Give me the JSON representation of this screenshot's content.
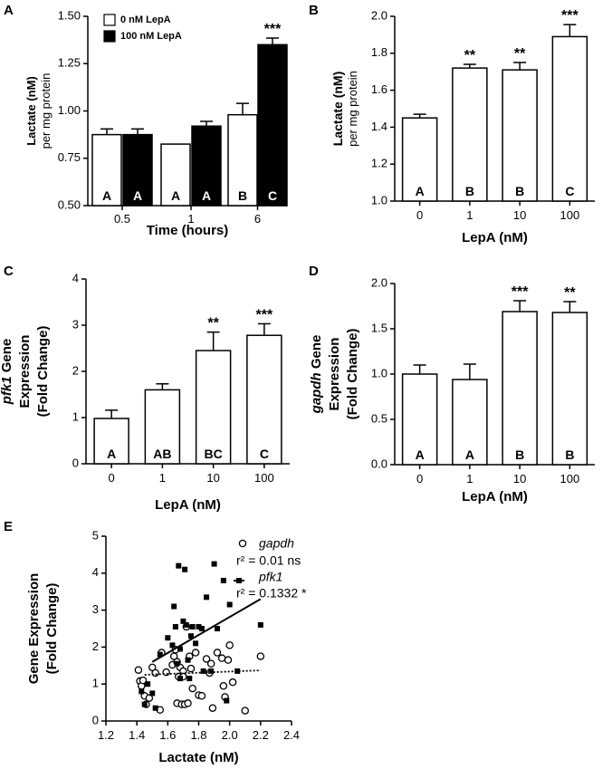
{
  "chart_data": [
    {
      "panel": "A",
      "type": "bar",
      "xlabel": "Time (hours)",
      "ylabel_line1": "Lactate (nM)",
      "ylabel_line2": "per mg protein",
      "ylim": [
        0.5,
        1.5
      ],
      "yticks": [
        "0.50",
        "0.75",
        "1.00",
        "1.25",
        "1.50"
      ],
      "categories": [
        "0.5",
        "1",
        "6"
      ],
      "series": [
        {
          "name": "0 nM LepA",
          "fill": "#ffffff",
          "values": [
            0.875,
            0.825,
            0.98
          ],
          "errors": [
            0.03,
            0.0,
            0.06
          ],
          "letters": [
            "A",
            "A",
            "B"
          ],
          "sig": [
            "",
            "",
            ""
          ]
        },
        {
          "name": "100 nM LepA",
          "fill": "#000000",
          "values": [
            0.875,
            0.92,
            1.35
          ],
          "errors": [
            0.03,
            0.025,
            0.035
          ],
          "letters": [
            "A",
            "A",
            "C"
          ],
          "sig": [
            "",
            "",
            "***"
          ]
        }
      ]
    },
    {
      "panel": "B",
      "type": "bar",
      "xlabel": "LepA (nM)",
      "ylabel_line1": "Lactate (nM)",
      "ylabel_line2": "per mg protein",
      "ylim": [
        1.0,
        2.0
      ],
      "yticks": [
        "1.0",
        "1.2",
        "1.4",
        "1.6",
        "1.8",
        "2.0"
      ],
      "categories": [
        "0",
        "1",
        "10",
        "100"
      ],
      "values": [
        1.45,
        1.72,
        1.71,
        1.89
      ],
      "errors": [
        0.02,
        0.02,
        0.04,
        0.065
      ],
      "letters": [
        "A",
        "B",
        "B",
        "C"
      ],
      "sig": [
        "",
        "**",
        "**",
        "***"
      ]
    },
    {
      "panel": "C",
      "type": "bar",
      "xlabel": "LepA (nM)",
      "ylabel_italic": "pfk1",
      "ylabel_rest": " Gene",
      "ylabel_line2": "Expression",
      "ylabel_line3": "(Fold Change)",
      "ylim": [
        0,
        4
      ],
      "yticks": [
        "0",
        "1",
        "2",
        "3",
        "4"
      ],
      "categories": [
        "0",
        "1",
        "10",
        "100"
      ],
      "values": [
        0.98,
        1.6,
        2.45,
        2.78
      ],
      "errors": [
        0.18,
        0.13,
        0.4,
        0.25
      ],
      "letters": [
        "A",
        "AB",
        "BC",
        "C"
      ],
      "sig": [
        "",
        "",
        "**",
        "***"
      ]
    },
    {
      "panel": "D",
      "type": "bar",
      "xlabel": "LepA (nM)",
      "ylabel_italic": "gapdh",
      "ylabel_rest": " Gene",
      "ylabel_line2": "Expression",
      "ylabel_line3": "(Fold Change)",
      "ylim": [
        0,
        2.0
      ],
      "yticks": [
        "0.0",
        "0.5",
        "1.0",
        "1.5",
        "2.0"
      ],
      "categories": [
        "0",
        "1",
        "10",
        "100"
      ],
      "values": [
        1.0,
        0.94,
        1.69,
        1.68
      ],
      "errors": [
        0.1,
        0.17,
        0.12,
        0.12
      ],
      "letters": [
        "A",
        "A",
        "B",
        "B"
      ],
      "sig": [
        "",
        "",
        "***",
        "**"
      ]
    },
    {
      "panel": "E",
      "type": "scatter",
      "xlabel": "Lactate (nM)",
      "ylabel_line1": "Gene Expression",
      "ylabel_line2": "(Fold Change)",
      "xlim": [
        1.2,
        2.4
      ],
      "ylim": [
        0,
        5
      ],
      "xticks": [
        "1.2",
        "1.4",
        "1.6",
        "1.8",
        "2.0",
        "2.2",
        "2.4"
      ],
      "yticks": [
        "0",
        "1",
        "2",
        "3",
        "4",
        "5"
      ],
      "series": [
        {
          "name": "gapdh",
          "stat": "r² = 0.01 ns",
          "marker": "open-circle",
          "fit": {
            "x": [
              1.45,
              2.2
            ],
            "y": [
              1.25,
              1.37
            ],
            "style": "dotted"
          },
          "points": [
            [
              1.41,
              1.38
            ],
            [
              1.42,
              1.08
            ],
            [
              1.43,
              0.95
            ],
            [
              1.44,
              1.1
            ],
            [
              1.45,
              0.68
            ],
            [
              1.46,
              0.45
            ],
            [
              1.48,
              0.62
            ],
            [
              1.5,
              1.45
            ],
            [
              1.52,
              1.3
            ],
            [
              1.55,
              0.3
            ],
            [
              1.56,
              1.85
            ],
            [
              1.59,
              1.32
            ],
            [
              1.63,
              1.52
            ],
            [
              1.64,
              1.75
            ],
            [
              1.65,
              1.93
            ],
            [
              1.66,
              1.6
            ],
            [
              1.66,
              0.48
            ],
            [
              1.67,
              1.2
            ],
            [
              1.68,
              1.45
            ],
            [
              1.69,
              0.45
            ],
            [
              1.7,
              1.35
            ],
            [
              1.7,
              1.2
            ],
            [
              1.71,
              0.45
            ],
            [
              1.72,
              2.55
            ],
            [
              1.73,
              0.48
            ],
            [
              1.74,
              1.75
            ],
            [
              1.75,
              1.42
            ],
            [
              1.76,
              0.88
            ],
            [
              1.78,
              1.85
            ],
            [
              1.8,
              0.7
            ],
            [
              1.82,
              0.68
            ],
            [
              1.85,
              1.68
            ],
            [
              1.87,
              1.3
            ],
            [
              1.88,
              1.55
            ],
            [
              1.89,
              0.35
            ],
            [
              1.92,
              1.85
            ],
            [
              1.95,
              1.7
            ],
            [
              1.96,
              0.95
            ],
            [
              1.97,
              0.65
            ],
            [
              1.99,
              1.65
            ],
            [
              2.0,
              2.05
            ],
            [
              2.02,
              1.05
            ],
            [
              2.1,
              0.28
            ],
            [
              2.2,
              1.75
            ]
          ]
        },
        {
          "name": "pfk1",
          "stat": "r² = 0.1332 *",
          "marker": "filled-square",
          "fit": {
            "x": [
              1.5,
              2.2
            ],
            "y": [
              1.6,
              3.3
            ],
            "style": "solid"
          },
          "points": [
            [
              1.43,
              0.8
            ],
            [
              1.45,
              0.45
            ],
            [
              1.47,
              1.0
            ],
            [
              1.5,
              0.75
            ],
            [
              1.52,
              0.35
            ],
            [
              1.55,
              1.8
            ],
            [
              1.6,
              2.25
            ],
            [
              1.63,
              2.05
            ],
            [
              1.64,
              3.1
            ],
            [
              1.65,
              2.55
            ],
            [
              1.66,
              1.55
            ],
            [
              1.67,
              4.2
            ],
            [
              1.68,
              1.15
            ],
            [
              1.68,
              1.95
            ],
            [
              1.7,
              2.7
            ],
            [
              1.71,
              4.1
            ],
            [
              1.72,
              2.6
            ],
            [
              1.73,
              1.65
            ],
            [
              1.74,
              1.15
            ],
            [
              1.75,
              2.3
            ],
            [
              1.76,
              2.55
            ],
            [
              1.78,
              2.1
            ],
            [
              1.8,
              2.55
            ],
            [
              1.82,
              2.5
            ],
            [
              1.83,
              1.35
            ],
            [
              1.85,
              3.35
            ],
            [
              1.88,
              1.35
            ],
            [
              1.9,
              4.25
            ],
            [
              1.92,
              2.5
            ],
            [
              1.96,
              3.8
            ],
            [
              1.98,
              0.55
            ],
            [
              2.0,
              3.15
            ],
            [
              2.05,
              1.35
            ],
            [
              2.2,
              2.6
            ]
          ]
        }
      ]
    }
  ]
}
